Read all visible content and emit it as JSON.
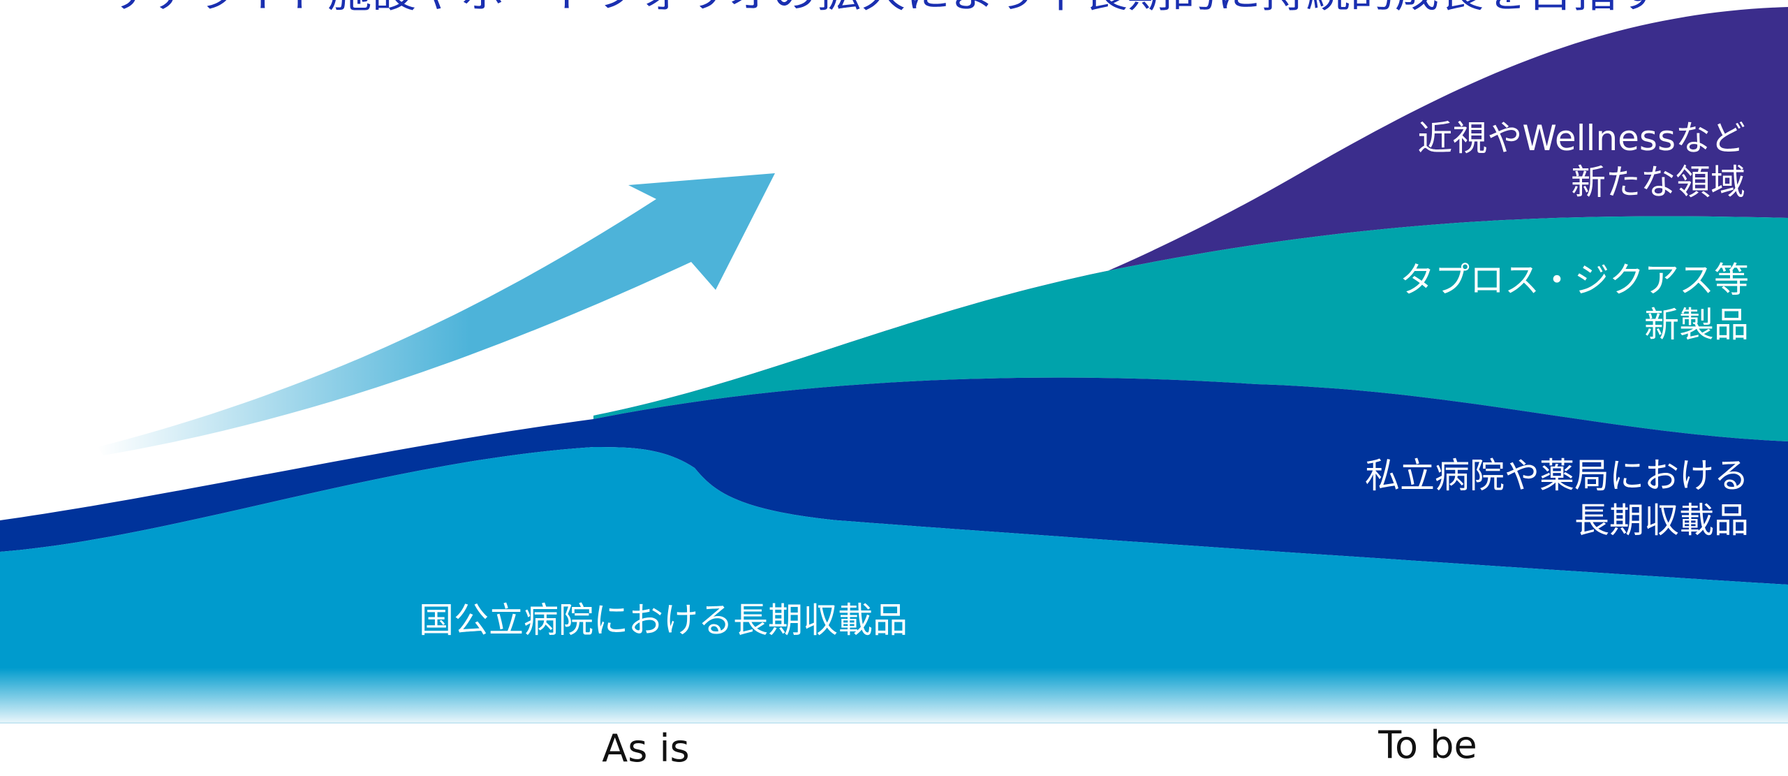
{
  "title": "サテライト施設やポートフォリオの拡大により中長期的に持続的成長を目指す",
  "chart_data": {
    "type": "area",
    "categories": [
      "As is",
      "To be"
    ],
    "series": [
      {
        "name": "国公立病院における長期収載品",
        "color": "#009bcd"
      },
      {
        "name": "私立病院や薬局における長期収載品",
        "color": "#00339b"
      },
      {
        "name": "タプロス・ジクアス等新製品",
        "color": "#00a3ab"
      },
      {
        "name": "近視やWellnessなど新たな領域",
        "color": "#3b2d8c"
      }
    ],
    "labels": {
      "base": [
        "国公立病院における長期収載品"
      ],
      "private": [
        "私立病院や薬局における",
        "長期収載品"
      ],
      "new_products": [
        "タプロス・ジクアス等",
        "新製品"
      ],
      "new_domains": [
        "近視やWellnessなど",
        "新たな領域"
      ]
    },
    "arrow_color": "#4db3d9"
  }
}
